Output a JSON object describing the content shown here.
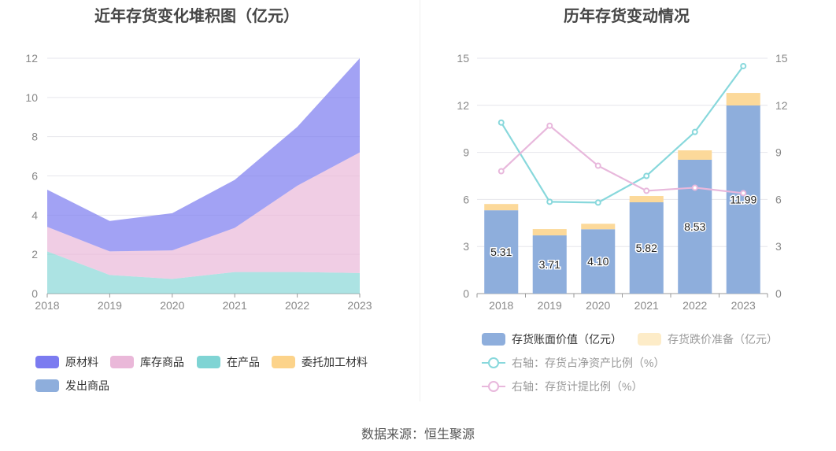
{
  "left_title": "近年存货变化堆积图（亿元）",
  "right_title": "历年存货变动情况",
  "source": "数据来源：恒生聚源",
  "chart_data": [
    {
      "type": "area",
      "title": "近年存货变化堆积图（亿元）",
      "stacked": true,
      "x": [
        "2018",
        "2019",
        "2020",
        "2021",
        "2022",
        "2023"
      ],
      "ylim": [
        0,
        12
      ],
      "yticks": [
        0,
        2,
        4,
        6,
        8,
        10,
        12
      ],
      "series": [
        {
          "name": "在产品",
          "color": "#7fd4d4",
          "values": [
            2.15,
            0.95,
            0.75,
            1.1,
            1.1,
            1.05
          ]
        },
        {
          "name": "库存商品",
          "color": "#eab8d9",
          "values": [
            1.25,
            1.2,
            1.45,
            2.25,
            4.4,
            6.15
          ]
        },
        {
          "name": "原材料",
          "color": "#7b7bf0",
          "values": [
            1.9,
            1.55,
            1.9,
            2.45,
            3.0,
            4.8
          ]
        },
        {
          "name": "委托加工材料",
          "color": "#fcd38a",
          "values": [
            0,
            0,
            0,
            0,
            0,
            0
          ]
        },
        {
          "name": "发出商品",
          "color": "#8eaedc",
          "values": [
            0,
            0,
            0,
            0,
            0,
            0
          ]
        }
      ],
      "legend_order": [
        "原材料",
        "库存商品",
        "在产品",
        "委托加工材料",
        "发出商品"
      ]
    },
    {
      "type": "bar",
      "title": "历年存货变动情况",
      "categories": [
        "2018",
        "2019",
        "2020",
        "2021",
        "2022",
        "2023"
      ],
      "ylim": [
        0,
        15
      ],
      "yticks": [
        0,
        3,
        6,
        9,
        12,
        15
      ],
      "y2lim": [
        0,
        15
      ],
      "y2ticks": [
        0,
        3,
        6,
        9,
        12,
        15
      ],
      "bar_series": [
        {
          "name": "存货账面价值（亿元）",
          "color": "#8eaedc",
          "values": [
            5.31,
            3.71,
            4.1,
            5.82,
            8.53,
            11.99
          ],
          "labels": [
            "5.31",
            "3.71",
            "4.10",
            "5.82",
            "8.53",
            "11.99"
          ]
        },
        {
          "name": "存货跌价准备（亿元）",
          "color": "#fcd99a",
          "values": [
            0.4,
            0.4,
            0.35,
            0.4,
            0.6,
            0.8
          ]
        }
      ],
      "line_series": [
        {
          "name": "右轴：存货占净资产比例（%）",
          "color": "#88d8dc",
          "values": [
            10.9,
            5.85,
            5.8,
            7.5,
            10.3,
            14.5
          ]
        },
        {
          "name": "右轴：存货计提比例（%）",
          "color": "#e8b8dc",
          "values": [
            7.8,
            10.7,
            8.15,
            6.55,
            6.75,
            6.4
          ]
        }
      ]
    }
  ]
}
